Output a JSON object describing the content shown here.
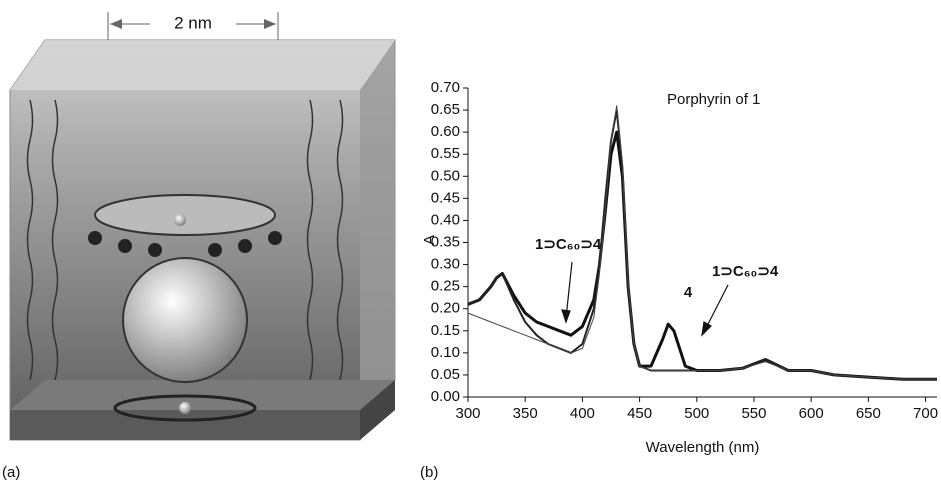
{
  "figure": {
    "panel_a": {
      "label": "(a)",
      "scale_label": "2 nm"
    },
    "panel_b": {
      "label": "(b)"
    }
  },
  "chart_data": {
    "type": "line",
    "xlabel": "Wavelength (nm)",
    "ylabel": "A",
    "xlim": [
      300,
      710
    ],
    "ylim": [
      0,
      0.7
    ],
    "xticks": [
      300,
      350,
      400,
      450,
      500,
      550,
      600,
      650,
      700
    ],
    "yticks": [
      {
        "value": 0,
        "label": "0.00"
      },
      {
        "value": 0.05,
        "label": "0.05"
      },
      {
        "value": 0.1,
        "label": "0.10"
      },
      {
        "value": 0.15,
        "label": "0.15"
      },
      {
        "value": 0.2,
        "label": "0.20"
      },
      {
        "value": 0.25,
        "label": "0.25"
      },
      {
        "value": 0.3,
        "label": "0.30"
      },
      {
        "value": 0.35,
        "label": "0.35"
      },
      {
        "value": 0.4,
        "label": "0.40"
      },
      {
        "value": 0.45,
        "label": "0.45"
      },
      {
        "value": 0.5,
        "label": "0.50"
      },
      {
        "value": 0.55,
        "label": "0.55"
      },
      {
        "value": 0.6,
        "label": "0.60"
      },
      {
        "value": 0.65,
        "label": "0.65"
      },
      {
        "value": 0.7,
        "label": "0.70"
      }
    ],
    "x": [
      300,
      310,
      320,
      325,
      330,
      340,
      350,
      360,
      370,
      380,
      390,
      400,
      410,
      415,
      420,
      425,
      430,
      435,
      440,
      445,
      450,
      460,
      470,
      475,
      480,
      490,
      500,
      520,
      540,
      560,
      580,
      600,
      620,
      650,
      680,
      710
    ],
    "series": [
      {
        "color": "#111111",
        "width": 3,
        "values": [
          0.21,
          0.22,
          0.25,
          0.27,
          0.28,
          0.23,
          0.19,
          0.17,
          0.16,
          0.15,
          0.14,
          0.16,
          0.22,
          0.3,
          0.42,
          0.55,
          0.6,
          0.5,
          0.25,
          0.12,
          0.07,
          0.07,
          0.13,
          0.165,
          0.15,
          0.07,
          0.06,
          0.06,
          0.065,
          0.085,
          0.06,
          0.06,
          0.05,
          0.045,
          0.04,
          0.04
        ]
      },
      {
        "color": "#222222",
        "width": 2,
        "values": [
          0.21,
          0.22,
          0.25,
          0.27,
          0.28,
          0.22,
          0.17,
          0.14,
          0.12,
          0.11,
          0.1,
          0.12,
          0.2,
          0.3,
          0.45,
          0.58,
          0.65,
          0.52,
          0.25,
          0.12,
          0.07,
          0.06,
          0.06,
          0.06,
          0.06,
          0.06,
          0.06,
          0.06,
          0.065,
          0.085,
          0.06,
          0.06,
          0.05,
          0.045,
          0.04,
          0.04
        ]
      },
      {
        "color": "#444444",
        "width": 1,
        "values": [
          0.19,
          0.18,
          0.17,
          0.165,
          0.16,
          0.15,
          0.14,
          0.13,
          0.12,
          0.11,
          0.1,
          0.11,
          0.18,
          0.28,
          0.42,
          0.58,
          0.66,
          0.53,
          0.26,
          0.12,
          0.07,
          0.06,
          0.06,
          0.06,
          0.06,
          0.06,
          0.06,
          0.06,
          0.065,
          0.08,
          0.06,
          0.06,
          0.05,
          0.045,
          0.04,
          0.04
        ]
      }
    ],
    "annotations": [
      "Porphyrin of 1",
      "1⊃C₆₀⊃4",
      "4",
      "1⊃C₆₀⊃4"
    ]
  }
}
